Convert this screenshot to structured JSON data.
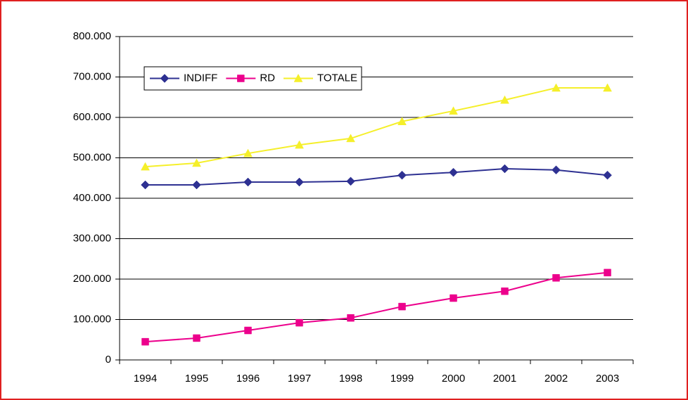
{
  "chart_data": {
    "type": "line",
    "categories": [
      "1994",
      "1995",
      "1996",
      "1997",
      "1998",
      "1999",
      "2000",
      "2001",
      "2002",
      "2003"
    ],
    "series": [
      {
        "name": "INDIFF",
        "color": "#2e3192",
        "marker": "diamond",
        "values": [
          433000,
          433000,
          440000,
          440000,
          442000,
          457000,
          464000,
          473000,
          470000,
          457000
        ]
      },
      {
        "name": "RD",
        "color": "#ec008c",
        "marker": "square",
        "values": [
          45000,
          54000,
          73000,
          92000,
          104000,
          132000,
          153000,
          170000,
          203000,
          216000
        ]
      },
      {
        "name": "TOTALE",
        "color": "#f5ef2a",
        "marker": "triangle",
        "values": [
          478000,
          487000,
          511000,
          532000,
          548000,
          590000,
          616000,
          643000,
          673000,
          673000
        ]
      }
    ],
    "ylim": [
      0,
      800000
    ],
    "yticks": [
      0,
      {
        "value": 100000,
        "label": "100.000"
      },
      {
        "value": 200000,
        "label": "200.000"
      },
      {
        "value": 300000,
        "label": "300.000"
      },
      {
        "value": 400000,
        "label": "400.000"
      },
      {
        "value": 500000,
        "label": "500.000"
      },
      {
        "value": 600000,
        "label": "600.000"
      },
      {
        "value": 700000,
        "label": "700.000"
      },
      {
        "value": 800000,
        "label": "800.000"
      }
    ],
    "grid": true,
    "legend": "upper left"
  }
}
